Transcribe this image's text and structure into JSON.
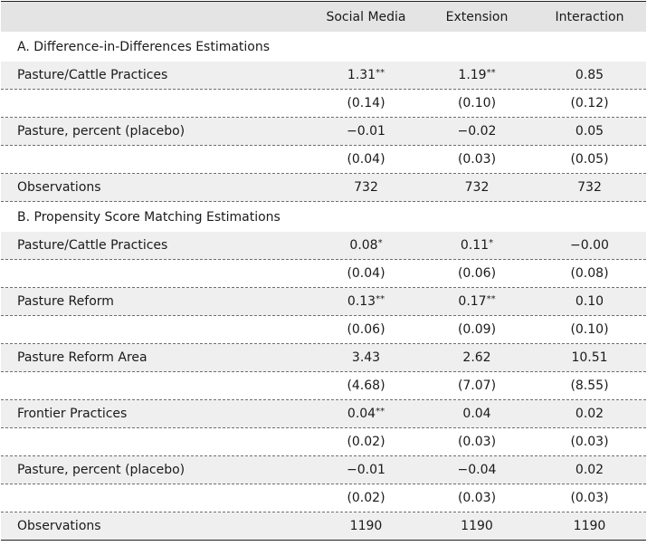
{
  "header": {
    "columns": [
      "",
      "Social Media",
      "Extension",
      "Interaction"
    ]
  },
  "panels": [
    {
      "title": "A. Difference-in-Differences Estimations",
      "rows": [
        {
          "label": "Pasture/Cattle Practices",
          "values": [
            "1.31**",
            "1.19**",
            "0.85"
          ]
        },
        {
          "label": "",
          "values": [
            "(0.14)",
            "(0.10)",
            "(0.12)"
          ]
        },
        {
          "label": "Pasture, percent (placebo)",
          "values": [
            "−0.01",
            "−0.02",
            "0.05"
          ]
        },
        {
          "label": "",
          "values": [
            "(0.04)",
            "(0.03)",
            "(0.05)"
          ]
        },
        {
          "label": "Observations",
          "values": [
            "732",
            "732",
            "732"
          ]
        }
      ]
    },
    {
      "title": "B. Propensity Score Matching Estimations",
      "rows": [
        {
          "label": "Pasture/Cattle Practices",
          "values": [
            "0.08*",
            "0.11*",
            "−0.00"
          ]
        },
        {
          "label": "",
          "values": [
            "(0.04)",
            "(0.06)",
            "(0.08)"
          ]
        },
        {
          "label": "Pasture Reform",
          "values": [
            "0.13**",
            "0.17**",
            "0.10"
          ]
        },
        {
          "label": "",
          "values": [
            "(0.06)",
            "(0.09)",
            "(0.10)"
          ]
        },
        {
          "label": "Pasture Reform Area",
          "values": [
            "3.43",
            "2.62",
            "10.51"
          ]
        },
        {
          "label": "",
          "values": [
            "(4.68)",
            "(7.07)",
            "(8.55)"
          ]
        },
        {
          "label": "Frontier Practices",
          "values": [
            "0.04**",
            "0.04",
            "0.02"
          ]
        },
        {
          "label": "",
          "values": [
            "(0.02)",
            "(0.03)",
            "(0.03)"
          ]
        },
        {
          "label": "Pasture, percent (placebo)",
          "values": [
            "−0.01",
            "−0.04",
            "0.02"
          ]
        },
        {
          "label": "",
          "values": [
            "(0.02)",
            "(0.03)",
            "(0.03)"
          ]
        },
        {
          "label": "Observations",
          "values": [
            "1190",
            "1190",
            "1190"
          ]
        }
      ]
    }
  ]
}
